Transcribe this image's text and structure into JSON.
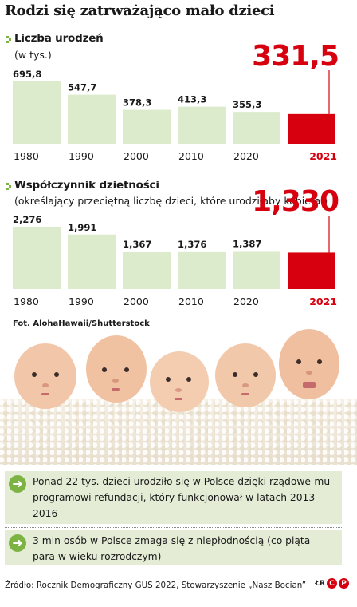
{
  "title": "Rodzi się zatrważająco mało dzieci",
  "chart_data": [
    {
      "type": "bar",
      "title": "Liczba urodzeń",
      "subtitle": "(w tys.)",
      "categories": [
        "1980",
        "1990",
        "2000",
        "2010",
        "2020",
        "2021"
      ],
      "values": [
        695.8,
        547.7,
        378.3,
        413.3,
        355.3,
        331.5
      ],
      "labels": [
        "695,8",
        "547,7",
        "378,3",
        "413,3",
        "355,3",
        "331,5"
      ],
      "highlight": "2021",
      "bar_color": "#dcebcb",
      "highlight_color": "#d7000f",
      "ylim": [
        0,
        695.8
      ]
    },
    {
      "type": "bar",
      "title": "Współczynnik dzietności",
      "subtitle": "(określający przeciętną liczbę dzieci, które urodziłaby kobieta )",
      "categories": [
        "1980",
        "1990",
        "2000",
        "2010",
        "2020",
        "2021"
      ],
      "values": [
        2.276,
        1.991,
        1.367,
        1.376,
        1.387,
        1.33
      ],
      "labels": [
        "2,276",
        "1,991",
        "1,367",
        "1,376",
        "1,387",
        "1,330"
      ],
      "highlight": "2021",
      "bar_color": "#dcebcb",
      "highlight_color": "#d7000f",
      "ylim": [
        0,
        2.276
      ]
    }
  ],
  "photo_credit": "Fot. AlohaHawaii/Shutterstock",
  "facts": [
    "Ponad 22 tys. dzieci urodziło się w Polsce dzięki rządowe-mu programowi refundacji, który funkcjonował w latach 2013–2016",
    "3 mln osób w Polsce zmaga się z niepłodnością (co piąta para w wieku rozrodczym)"
  ],
  "fact_icon": "arrow-right-icon",
  "source": "Źródło: Rocznik Demograficzny GUS 2022, Stowarzyszenie „Nasz Bocian”",
  "logo": {
    "initials": "ŁR",
    "c1": "C",
    "c2": "P"
  },
  "colors": {
    "accent_green": "#7cb342",
    "highlight_red": "#d7000f",
    "box_bg": "#e4ecd6"
  }
}
